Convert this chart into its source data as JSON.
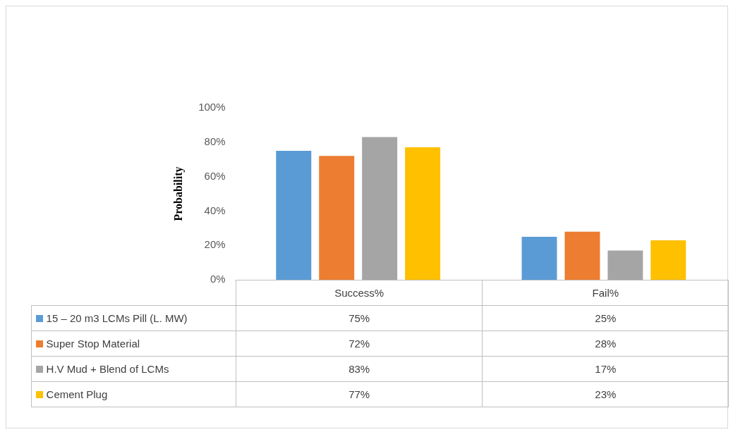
{
  "chart_data": {
    "type": "bar",
    "ylabel": "Probability",
    "categories": [
      "Success%",
      "Fail%"
    ],
    "series": [
      {
        "name": "15 – 20 m3 LCMs Pill (L. MW)",
        "color": "#5b9bd5",
        "values": [
          75,
          25
        ],
        "value_labels": [
          "75%",
          "25%"
        ]
      },
      {
        "name": "Super Stop Material",
        "color": "#ed7d31",
        "values": [
          72,
          28
        ],
        "value_labels": [
          "72%",
          "28%"
        ]
      },
      {
        "name": "H.V Mud + Blend of LCMs",
        "color": "#a5a5a5",
        "values": [
          83,
          17
        ],
        "value_labels": [
          "83%",
          "17%"
        ]
      },
      {
        "name": "Cement Plug",
        "color": "#ffc000",
        "values": [
          77,
          23
        ],
        "value_labels": [
          "77%",
          "23%"
        ]
      }
    ],
    "ylim": [
      0,
      100
    ],
    "yticks": [
      {
        "value": 0,
        "label": "0%"
      },
      {
        "value": 20,
        "label": "20%"
      },
      {
        "value": 40,
        "label": "40%"
      },
      {
        "value": 60,
        "label": "60%"
      },
      {
        "value": 80,
        "label": "80%"
      },
      {
        "value": 100,
        "label": "100%"
      }
    ],
    "grid": false,
    "legend": "bottom"
  }
}
